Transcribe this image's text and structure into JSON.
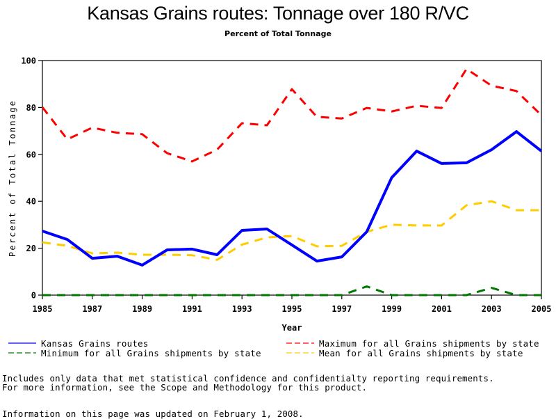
{
  "chart_data": {
    "type": "line",
    "title": "Kansas Grains routes: Tonnage over 180 R/VC",
    "subtitle": "Percent of Total Tonnage",
    "xlabel": "Year",
    "ylabel": "Percent of Total Tonnage",
    "xlim": [
      1985,
      2005
    ],
    "ylim": [
      0,
      100
    ],
    "x_ticks": [
      1985,
      1987,
      1989,
      1991,
      1993,
      1995,
      1997,
      1999,
      2001,
      2003,
      2005
    ],
    "y_ticks": [
      0,
      20,
      40,
      60,
      80,
      100
    ],
    "grid": false,
    "legend_position": "bottom",
    "x": [
      1985,
      1986,
      1987,
      1988,
      1989,
      1990,
      1991,
      1992,
      1993,
      1994,
      1995,
      1996,
      1997,
      1998,
      1999,
      2000,
      2001,
      2002,
      2003,
      2004,
      2005
    ],
    "series": [
      {
        "name": "Kansas Grains routes",
        "color": "#0000ff",
        "style": "solid",
        "values": [
          27.3,
          23.7,
          15.7,
          16.6,
          12.8,
          19.3,
          19.6,
          17.2,
          27.6,
          28.2,
          21.4,
          14.5,
          16.3,
          27.0,
          50.1,
          61.4,
          56.1,
          56.4,
          62.0,
          69.7,
          61.4
        ]
      },
      {
        "name": "Maximum for all Grains shipments by state",
        "color": "#ff0000",
        "style": "dashed",
        "values": [
          80.1,
          66.4,
          71.4,
          69.2,
          68.6,
          60.5,
          57.0,
          62.0,
          73.3,
          72.4,
          87.8,
          76.0,
          75.3,
          79.8,
          78.3,
          80.7,
          79.8,
          96.4,
          89.3,
          87.0,
          76.7
        ]
      },
      {
        "name": "Minimum for all Grains shipments by state",
        "color": "#007700",
        "style": "dashed",
        "values": [
          0,
          0,
          0,
          0,
          0,
          0,
          0,
          0,
          0,
          0,
          0,
          0,
          0,
          3.7,
          0,
          0,
          0,
          0,
          3.1,
          0,
          0
        ]
      },
      {
        "name": "Mean for all Grains shipments by state",
        "color": "#ffcc00",
        "style": "dashed",
        "values": [
          22.5,
          21.0,
          17.8,
          18.1,
          17.2,
          17.2,
          17.0,
          15.0,
          21.5,
          24.6,
          25.2,
          20.8,
          21.0,
          27.0,
          30.0,
          29.7,
          29.7,
          38.3,
          40.0,
          36.2,
          36.2
        ]
      }
    ]
  },
  "legend": [
    {
      "label": "Kansas Grains routes",
      "color": "#0000ff",
      "style": "solid"
    },
    {
      "label": "Maximum for all Grains shipments by state",
      "color": "#ff0000",
      "style": "dashed"
    },
    {
      "label": "Minimum for all Grains shipments by state",
      "color": "#007700",
      "style": "dashed"
    },
    {
      "label": "Mean for all Grains shipments by state",
      "color": "#ffcc00",
      "style": "dashed"
    }
  ],
  "footnotes": {
    "line1": "Includes only data that met statistical confidence and confidentialty reporting requirements.",
    "line2": "For more information, see the Scope and Methodology for this product.",
    "updated": "Information on this page was updated on February 1, 2008."
  }
}
